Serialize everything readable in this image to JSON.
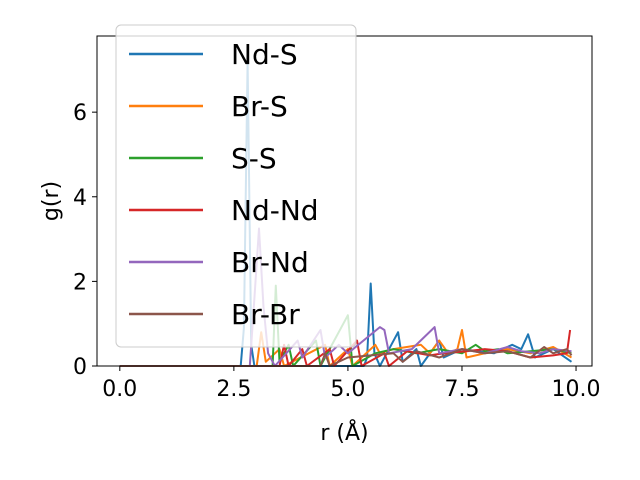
{
  "chart_data": {
    "type": "line",
    "xlabel": "r (Å)",
    "ylabel": "g(r)",
    "xlim": [
      -0.5,
      10.35
    ],
    "ylim": [
      0,
      7.8
    ],
    "xticks": [
      0.0,
      2.5,
      5.0,
      7.5,
      10.0
    ],
    "xtick_labels": [
      "0.0",
      "2.5",
      "5.0",
      "7.5",
      "10.0"
    ],
    "yticks": [
      0,
      2,
      4,
      6
    ],
    "ytick_labels": [
      "0",
      "2",
      "4",
      "6"
    ],
    "grid": false,
    "legend_position": "upper-left",
    "series": [
      {
        "name": "Nd-S",
        "color": "#1f77b4",
        "points": [
          [
            0,
            0
          ],
          [
            2.65,
            0
          ],
          [
            2.72,
            0.9
          ],
          [
            2.8,
            7.2
          ],
          [
            2.88,
            0.5
          ],
          [
            2.95,
            0
          ],
          [
            5.35,
            0
          ],
          [
            5.42,
            0.2
          ],
          [
            5.5,
            1.95
          ],
          [
            5.58,
            0.3
          ],
          [
            5.7,
            0
          ],
          [
            6.1,
            0.8
          ],
          [
            6.2,
            0.1
          ],
          [
            6.5,
            0.4
          ],
          [
            6.6,
            0
          ],
          [
            7.0,
            0.6
          ],
          [
            7.1,
            0.2
          ],
          [
            7.5,
            0.4
          ],
          [
            8.2,
            0.3
          ],
          [
            8.6,
            0.5
          ],
          [
            8.8,
            0.4
          ],
          [
            8.95,
            0.75
          ],
          [
            9.1,
            0.2
          ],
          [
            9.5,
            0.4
          ],
          [
            9.9,
            0.1
          ]
        ]
      },
      {
        "name": "Br-S",
        "color": "#ff7f0e",
        "points": [
          [
            0,
            0
          ],
          [
            3.0,
            0
          ],
          [
            3.1,
            0.8
          ],
          [
            3.2,
            0.1
          ],
          [
            3.5,
            0.4
          ],
          [
            3.6,
            0
          ],
          [
            4.5,
            0.5
          ],
          [
            4.6,
            0
          ],
          [
            5.0,
            0.4
          ],
          [
            5.1,
            0
          ],
          [
            5.6,
            0.5
          ],
          [
            5.7,
            0.3
          ],
          [
            6.0,
            0.4
          ],
          [
            6.6,
            0.5
          ],
          [
            6.8,
            0.3
          ],
          [
            7.0,
            0.6
          ],
          [
            7.2,
            0.3
          ],
          [
            7.4,
            0.4
          ],
          [
            7.5,
            0.85
          ],
          [
            7.6,
            0.2
          ],
          [
            8.0,
            0.3
          ],
          [
            8.5,
            0.4
          ],
          [
            9.0,
            0.3
          ],
          [
            9.5,
            0.45
          ],
          [
            9.9,
            0.2
          ]
        ]
      },
      {
        "name": "S-S",
        "color": "#2ca02c",
        "points": [
          [
            0,
            0
          ],
          [
            3.35,
            0
          ],
          [
            3.42,
            1.9
          ],
          [
            3.5,
            0.1
          ],
          [
            3.7,
            0.5
          ],
          [
            3.8,
            0
          ],
          [
            4.3,
            0.6
          ],
          [
            4.4,
            0
          ],
          [
            5.0,
            1.2
          ],
          [
            5.1,
            0
          ],
          [
            5.6,
            0.3
          ],
          [
            6.0,
            0.4
          ],
          [
            6.5,
            0.3
          ],
          [
            7.0,
            0.4
          ],
          [
            7.5,
            0.3
          ],
          [
            7.8,
            0.5
          ],
          [
            8.0,
            0.35
          ],
          [
            8.3,
            0.4
          ],
          [
            8.5,
            0.3
          ],
          [
            9.0,
            0.35
          ],
          [
            9.5,
            0.4
          ],
          [
            9.9,
            0.3
          ]
        ]
      },
      {
        "name": "Nd-Nd",
        "color": "#d62728",
        "points": [
          [
            0,
            0
          ],
          [
            3.5,
            0
          ],
          [
            3.6,
            0.5
          ],
          [
            3.7,
            0
          ],
          [
            4.0,
            0.4
          ],
          [
            4.1,
            0
          ],
          [
            4.6,
            0.4
          ],
          [
            4.7,
            0
          ],
          [
            5.2,
            0.6
          ],
          [
            5.3,
            0
          ],
          [
            5.8,
            0.3
          ],
          [
            5.9,
            0
          ],
          [
            6.3,
            0.35
          ],
          [
            6.8,
            0.25
          ],
          [
            7.1,
            0.3
          ],
          [
            7.6,
            0.35
          ],
          [
            8.0,
            0.4
          ],
          [
            8.5,
            0.35
          ],
          [
            9.0,
            0.2
          ],
          [
            9.5,
            0.25
          ],
          [
            9.8,
            0.3
          ],
          [
            9.87,
            0.85
          ]
        ]
      },
      {
        "name": "Br-Nd",
        "color": "#9467bd",
        "points": [
          [
            0,
            0
          ],
          [
            2.85,
            0
          ],
          [
            2.95,
            1.6
          ],
          [
            3.05,
            3.25
          ],
          [
            3.15,
            1.4
          ],
          [
            3.25,
            0.3
          ],
          [
            3.4,
            0
          ],
          [
            3.9,
            0.6
          ],
          [
            4.0,
            0.2
          ],
          [
            4.4,
            0.85
          ],
          [
            4.5,
            0.2
          ],
          [
            4.8,
            0.5
          ],
          [
            5.0,
            0.3
          ],
          [
            5.7,
            0.92
          ],
          [
            5.8,
            0.85
          ],
          [
            5.9,
            0.3
          ],
          [
            6.4,
            0.4
          ],
          [
            6.9,
            0.92
          ],
          [
            7.0,
            0.3
          ],
          [
            7.5,
            0.4
          ],
          [
            8.0,
            0.3
          ],
          [
            8.5,
            0.45
          ],
          [
            8.8,
            0.35
          ],
          [
            9.2,
            0.3
          ],
          [
            9.5,
            0.4
          ],
          [
            9.9,
            0.35
          ]
        ]
      },
      {
        "name": "Br-Br",
        "color": "#8c564b",
        "points": [
          [
            0,
            0
          ],
          [
            4.4,
            0
          ],
          [
            4.5,
            0.3
          ],
          [
            4.6,
            0
          ],
          [
            5.0,
            0.2
          ],
          [
            5.5,
            0.25
          ],
          [
            6.0,
            0.3
          ],
          [
            6.2,
            0.1
          ],
          [
            6.5,
            0.35
          ],
          [
            7.0,
            0.2
          ],
          [
            7.5,
            0.4
          ],
          [
            8.0,
            0.3
          ],
          [
            8.5,
            0.35
          ],
          [
            9.0,
            0.2
          ],
          [
            9.3,
            0.45
          ],
          [
            9.5,
            0.3
          ],
          [
            9.8,
            0.4
          ],
          [
            9.9,
            0.25
          ]
        ]
      }
    ]
  }
}
